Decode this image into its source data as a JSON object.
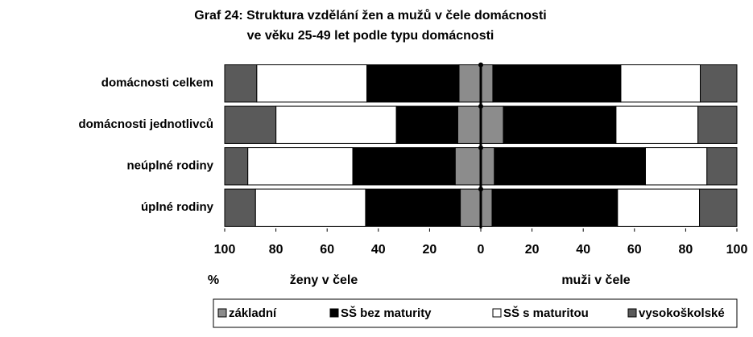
{
  "chart_data": {
    "type": "butterfly_stacked_bar",
    "title": [
      "Graf 24: Struktura vzdělání žen a mužů v čele domácnosti",
      "ve věku 25-49 let  podle typu domácnosti"
    ],
    "categories": [
      "domácnosti celkem",
      "domácnosti jednotlivců",
      "neúplné rodiny",
      "úplné rodiny"
    ],
    "x_unit_label": "%",
    "left_label": "ženy v čele",
    "right_label": "muži v čele",
    "xlim": [
      -100,
      100
    ],
    "xticks": [
      {
        "value": -100,
        "label": "100"
      },
      {
        "value": -80,
        "label": "80"
      },
      {
        "value": -60,
        "label": "60"
      },
      {
        "value": -40,
        "label": "40"
      },
      {
        "value": -20,
        "label": "20"
      },
      0,
      20,
      40,
      60,
      80,
      100
    ],
    "series": [
      {
        "name": "základní",
        "color": "#8c8c8c",
        "women": [
          8.5,
          9,
          10,
          8
        ],
        "men": [
          4.7,
          8.8,
          5.3,
          4.4
        ]
      },
      {
        "name": "SŠ bez maturity",
        "color": "#000000",
        "women": [
          36,
          24,
          40,
          37
        ],
        "men": [
          50,
          44,
          59,
          49
        ]
      },
      {
        "name": "SŠ s maturitou",
        "color": "#ffffff",
        "women": [
          43,
          47,
          41,
          43
        ],
        "men": [
          31,
          32,
          24,
          32
        ]
      },
      {
        "name": "vysokoškolské",
        "color": "#5a5a5a",
        "women": [
          12.5,
          20,
          9,
          12
        ],
        "men": [
          14.3,
          15.2,
          11.7,
          14.6
        ]
      }
    ],
    "legend": "bottom"
  }
}
